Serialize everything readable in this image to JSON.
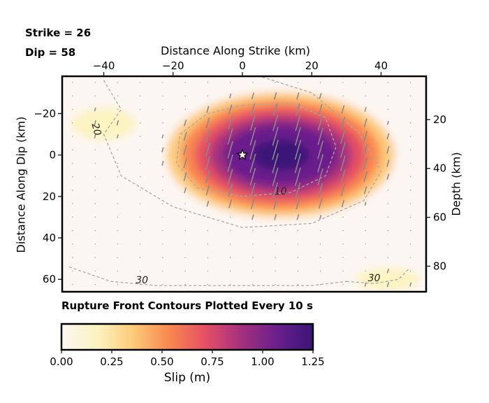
{
  "header": {
    "strike_text": "Strike = 26",
    "dip_text": "Dip = 58"
  },
  "footer": {
    "contour_note": "Rupture Front Contours Plotted Every 10 s"
  },
  "chart_data": {
    "type": "heatmap",
    "title": "",
    "x_top_label": "Distance Along Strike (km)",
    "y_left_label": "Distance Along Dip (km)",
    "y_right_label": "Depth (km)",
    "colorbar_label": "Slip (m)",
    "xlim": [
      -52,
      53
    ],
    "ylim_dip": [
      66,
      -38
    ],
    "x_ticks": [
      -40,
      -20,
      0,
      20,
      40
    ],
    "x_tick_labels": [
      "−40",
      "−20",
      "0",
      "20",
      "40"
    ],
    "y_left_ticks": [
      -20,
      0,
      20,
      40,
      60
    ],
    "y_left_tick_labels": [
      "−20",
      "0",
      "20",
      "40",
      "60"
    ],
    "y_right_ticks": [
      20,
      40,
      60,
      80
    ],
    "y_right_tick_labels": [
      "20",
      "40",
      "60",
      "80"
    ],
    "depth_at_dip_zero": 34.5,
    "depth_per_dip_km": 0.848,
    "colorbar": {
      "range": [
        0.0,
        1.25
      ],
      "ticks": [
        0.0,
        0.25,
        0.5,
        0.75,
        1.0,
        1.25
      ],
      "tick_labels": [
        "0.00",
        "0.25",
        "0.50",
        "0.75",
        "1.00",
        "1.25"
      ],
      "colormap": "magma_r",
      "stops": [
        "#fcf6f3",
        "#fbf3c0",
        "#fcca79",
        "#f9874f",
        "#e55064",
        "#a5307e",
        "#6a1f8c",
        "#3b1478"
      ]
    },
    "slip_patches": [
      {
        "x": 11,
        "y": 0,
        "rx": 37,
        "ry": 34,
        "peak": 1.22
      },
      {
        "x": -40,
        "y": -15,
        "rx": 12,
        "ry": 10,
        "peak": 0.22
      },
      {
        "x": 42,
        "y": 60,
        "rx": 12,
        "ry": 7,
        "peak": 0.22
      }
    ],
    "hypocenter": {
      "x": 0,
      "y": 0
    },
    "rupture_contours": [
      {
        "label": "10",
        "label_at": [
          11,
          19
        ]
      },
      {
        "label": "20",
        "label_at": [
          -43,
          -12
        ]
      },
      {
        "label": "30",
        "label_at": [
          -29,
          62
        ]
      },
      {
        "label": "30",
        "label_at": [
          38,
          61
        ]
      }
    ],
    "grid_spacing_x_km": 6.5,
    "grid_spacing_y_km": 6.5
  }
}
